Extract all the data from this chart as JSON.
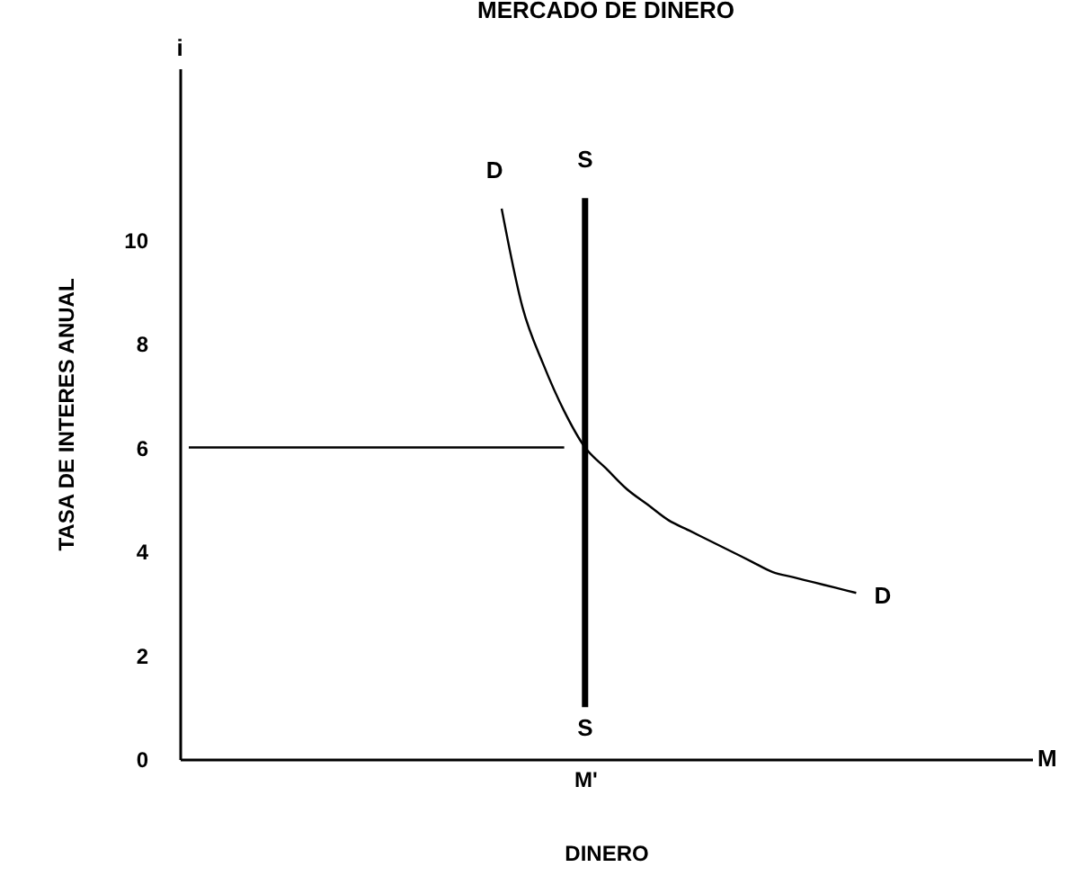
{
  "chart_data": {
    "type": "line",
    "title": "MERCADO DE DINERO",
    "xlabel": "DINERO",
    "ylabel": "TASA DE INTERES ANUAL",
    "categories": [
      null,
      null,
      null,
      null,
      null,
      null,
      null,
      null,
      null,
      null,
      null,
      null,
      null,
      null,
      null,
      null,
      null,
      null,
      null,
      "M'",
      null,
      null,
      null,
      null,
      null,
      null,
      null,
      null,
      null,
      null,
      null,
      null,
      null,
      null,
      null,
      null,
      null,
      null,
      null,
      null,
      null
    ],
    "ylim": [
      0,
      13.3
    ],
    "yticks": [
      0,
      2,
      4,
      6,
      8,
      10
    ],
    "series": [
      {
        "color": "#000000",
        "values": [
          null,
          null,
          null,
          null,
          null,
          null,
          null,
          null,
          null,
          null,
          null,
          null,
          null,
          null,
          null,
          10.6,
          8.7,
          7.6,
          6.7,
          6.0,
          5.6,
          5.2,
          4.9,
          4.6,
          4.4,
          4.2,
          4.0,
          3.8,
          3.6,
          3.5,
          3.4,
          3.3,
          3.2,
          null,
          null,
          null,
          null,
          null,
          null,
          null,
          null
        ]
      },
      {
        "type": "bar",
        "color": "#000000",
        "base": [
          null,
          null,
          null,
          null,
          null,
          null,
          null,
          null,
          null,
          null,
          null,
          null,
          null,
          null,
          null,
          null,
          null,
          null,
          null,
          1.0,
          null,
          null,
          null,
          null,
          null,
          null,
          null,
          null,
          null,
          null,
          null,
          null,
          null,
          null,
          null,
          null,
          null,
          null,
          null,
          null,
          null
        ],
        "values": [
          null,
          null,
          null,
          null,
          null,
          null,
          null,
          null,
          null,
          null,
          null,
          null,
          null,
          null,
          null,
          null,
          null,
          null,
          null,
          9.8,
          null,
          null,
          null,
          null,
          null,
          null,
          null,
          null,
          null,
          null,
          null,
          null,
          null,
          null,
          null,
          null,
          null,
          null,
          null,
          null,
          null
        ]
      },
      {
        "color": "#000000",
        "values": [
          6,
          6,
          6,
          6,
          6,
          6,
          6,
          6,
          6,
          6,
          6,
          6,
          6,
          6,
          6,
          6,
          6,
          6,
          6,
          null,
          null,
          null,
          null,
          null,
          null,
          null,
          null,
          null,
          null,
          null,
          null,
          null,
          null,
          null,
          null,
          null,
          null,
          null,
          null,
          null,
          null
        ]
      }
    ],
    "annotations": [
      "i",
      "M",
      "D",
      "S",
      "S",
      "D"
    ],
    "grid": false,
    "marker": "none",
    "line_style": "solid"
  }
}
